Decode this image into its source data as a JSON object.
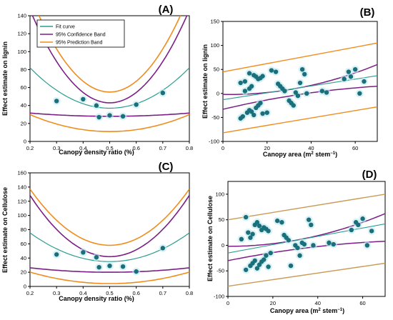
{
  "colors": {
    "fit": "#2a9d8f",
    "confidence": "#7b1f86",
    "prediction": "#f08c1c",
    "prediction_d": "#c99a54",
    "points": "#1b6f7a",
    "point_glow": "#bfe9ef"
  },
  "chart_data": [
    {
      "panel": "(A)",
      "type": "scatter",
      "xlabel": "Canopy density ratio (%)",
      "ylabel": "Effect estimate on lignin",
      "xlim": [
        0.2,
        0.8
      ],
      "ylim": [
        0,
        140
      ],
      "xticks": [
        "0.2",
        "0.3",
        "0.4",
        "0.5",
        "0.6",
        "0.7",
        "0.8"
      ],
      "yticks": [
        "0",
        "20",
        "40",
        "60",
        "80",
        "100",
        "120",
        "140"
      ],
      "legend": {
        "position": "top-left",
        "entries": [
          "Fit curve",
          "95% Confidence Band",
          "95% Prediction Band"
        ]
      },
      "points": [
        [
          0.3,
          45
        ],
        [
          0.4,
          47
        ],
        [
          0.45,
          40
        ],
        [
          0.46,
          27
        ],
        [
          0.5,
          29
        ],
        [
          0.55,
          28
        ],
        [
          0.6,
          41
        ],
        [
          0.7,
          54
        ]
      ],
      "fit": {
        "a": 37,
        "k": 500
      },
      "confidence": {
        "upper": {
          "a": 43,
          "k": 1150
        },
        "lower": {
          "a": 28,
          "k": 40
        }
      },
      "prediction": {
        "upper": {
          "a": 55,
          "k": 1200
        },
        "lower": {
          "a": 11,
          "k": 210
        }
      }
    },
    {
      "panel": "(B)",
      "type": "scatter",
      "xlabel": "Canopy area (m",
      "xlabel_sup": "2",
      "xlabel_mid": " stem",
      "xlabel_sup2": "−1",
      "xlabel_end": ")",
      "ylabel": "Effect estimate on lignin",
      "xlim": [
        0,
        70
      ],
      "ylim": [
        -100,
        150
      ],
      "xticks": [
        "0",
        "20",
        "40",
        "60"
      ],
      "yticks": [
        "-100",
        "-50",
        "0",
        "50",
        "100",
        "150"
      ],
      "points": [
        [
          8,
          22
        ],
        [
          10,
          25
        ],
        [
          12,
          42
        ],
        [
          14,
          38
        ],
        [
          15,
          35
        ],
        [
          16,
          30
        ],
        [
          17,
          32
        ],
        [
          18,
          36
        ],
        [
          9,
          -48
        ],
        [
          11,
          -40
        ],
        [
          12,
          -35
        ],
        [
          13,
          -38
        ],
        [
          14,
          -45
        ],
        [
          15,
          -30
        ],
        [
          16,
          -25
        ],
        [
          17,
          -20
        ],
        [
          18,
          -42
        ],
        [
          10,
          5
        ],
        [
          12,
          10
        ],
        [
          13,
          15
        ],
        [
          22,
          48
        ],
        [
          24,
          45
        ],
        [
          25,
          20
        ],
        [
          26,
          15
        ],
        [
          27,
          10
        ],
        [
          28,
          5
        ],
        [
          30,
          -15
        ],
        [
          31,
          -20
        ],
        [
          32,
          -25
        ],
        [
          33,
          2
        ],
        [
          34,
          -5
        ],
        [
          35,
          22
        ],
        [
          36,
          50
        ],
        [
          37,
          40
        ],
        [
          38,
          0
        ],
        [
          45,
          5
        ],
        [
          47,
          2
        ],
        [
          55,
          30
        ],
        [
          57,
          45
        ],
        [
          58,
          35
        ],
        [
          60,
          50
        ],
        [
          62,
          0
        ],
        [
          64,
          25
        ],
        [
          8,
          -52
        ],
        [
          20,
          -40
        ]
      ],
      "fit": {
        "x0": 0,
        "y0": -13,
        "x1": 70,
        "y1": 37
      },
      "confidence": {
        "upper": {
          "y_start": -2,
          "y_mid": 12,
          "y_end": 60
        },
        "lower": {
          "y_start": -33,
          "y_mid": -2,
          "y_end": 15
        }
      },
      "prediction": {
        "upper": {
          "y0": 45,
          "y1": 105
        },
        "lower": {
          "y0": -82,
          "y1": -28
        }
      }
    },
    {
      "panel": "(C)",
      "type": "scatter",
      "xlabel": "Canopy density ratio (%)",
      "ylabel": "Effect estimate on Cellulose",
      "xlim": [
        0.2,
        0.8
      ],
      "ylim": [
        0,
        160
      ],
      "xticks": [
        "0.2",
        "0.3",
        "0.4",
        "0.5",
        "0.6",
        "0.7",
        "0.8"
      ],
      "yticks": [
        "0",
        "20",
        "40",
        "60",
        "80",
        "100",
        "120",
        "140",
        "160"
      ],
      "points": [
        [
          0.3,
          45
        ],
        [
          0.4,
          48
        ],
        [
          0.45,
          41
        ],
        [
          0.46,
          27
        ],
        [
          0.5,
          29
        ],
        [
          0.55,
          28
        ],
        [
          0.6,
          21
        ],
        [
          0.7,
          54
        ]
      ],
      "fit": {
        "a": 35,
        "k": 450
      },
      "confidence": {
        "upper": {
          "a": 42,
          "k": 960
        },
        "lower": {
          "a": 20,
          "k": 70
        }
      },
      "prediction": {
        "upper": {
          "a": 58,
          "k": 880
        },
        "lower": {
          "a": 4,
          "k": 180
        }
      }
    },
    {
      "panel": "(D)",
      "type": "scatter",
      "xlabel": "Canopy area (m",
      "xlabel_sup": "2",
      "xlabel_mid": " stem",
      "xlabel_sup2": "−1",
      "xlabel_end": ")",
      "ylabel": "Effect estimate on Cellulose",
      "xlim": [
        0,
        70
      ],
      "ylim": [
        -100,
        125
      ],
      "xticks": [
        "0",
        "20",
        "40",
        "60"
      ],
      "yticks": [
        "-100",
        "-50",
        "0",
        "50",
        "100"
      ],
      "points": [
        [
          8,
          55
        ],
        [
          9,
          25
        ],
        [
          10,
          15
        ],
        [
          11,
          22
        ],
        [
          12,
          40
        ],
        [
          13,
          45
        ],
        [
          14,
          38
        ],
        [
          15,
          30
        ],
        [
          16,
          35
        ],
        [
          17,
          32
        ],
        [
          18,
          28
        ],
        [
          8,
          -48
        ],
        [
          10,
          -40
        ],
        [
          11,
          -35
        ],
        [
          12,
          -30
        ],
        [
          13,
          -45
        ],
        [
          14,
          -38
        ],
        [
          15,
          -32
        ],
        [
          16,
          -28
        ],
        [
          17,
          -20
        ],
        [
          18,
          -42
        ],
        [
          19,
          -15
        ],
        [
          22,
          48
        ],
        [
          24,
          45
        ],
        [
          25,
          20
        ],
        [
          26,
          15
        ],
        [
          27,
          10
        ],
        [
          28,
          -40
        ],
        [
          30,
          0
        ],
        [
          31,
          -5
        ],
        [
          32,
          -20
        ],
        [
          33,
          5
        ],
        [
          34,
          2
        ],
        [
          36,
          50
        ],
        [
          37,
          40
        ],
        [
          38,
          0
        ],
        [
          45,
          5
        ],
        [
          47,
          2
        ],
        [
          55,
          30
        ],
        [
          57,
          45
        ],
        [
          58,
          40
        ],
        [
          60,
          52
        ],
        [
          62,
          0
        ],
        [
          64,
          28
        ],
        [
          6,
          12
        ]
      ],
      "fit": {
        "x0": 0,
        "y0": -15,
        "x1": 70,
        "y1": 42
      },
      "confidence": {
        "upper": {
          "y_start": -2,
          "y_mid": 14,
          "y_end": 62
        },
        "lower": {
          "y_start": -30,
          "y_mid": -5,
          "y_end": 8
        }
      },
      "prediction": {
        "upper": {
          "y0": 50,
          "y1": 100
        },
        "lower": {
          "y0": -80,
          "y1": -35
        }
      }
    }
  ]
}
